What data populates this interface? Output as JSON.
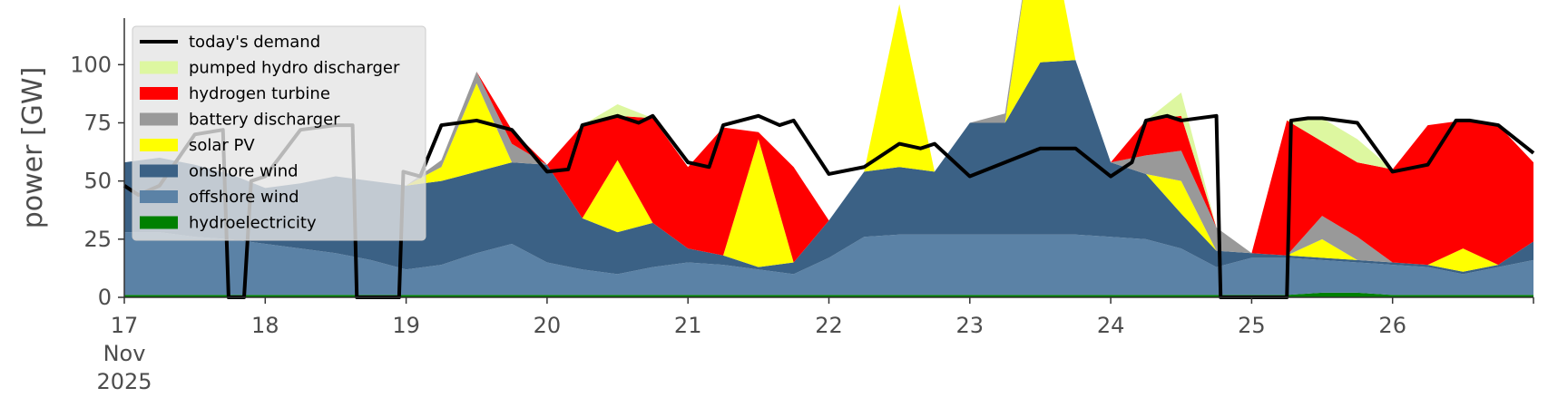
{
  "chart_data": {
    "type": "area",
    "title": "",
    "xlabel": "",
    "ylabel": "power [GW]",
    "xlim": [
      17,
      27
    ],
    "ylim": [
      0,
      120
    ],
    "yticks": [
      0,
      25,
      50,
      75,
      100
    ],
    "xticks": [
      {
        "value": 17,
        "lines": [
          "17",
          "Nov",
          "2025"
        ]
      },
      {
        "value": 18,
        "lines": [
          "18"
        ]
      },
      {
        "value": 19,
        "lines": [
          "19"
        ]
      },
      {
        "value": 20,
        "lines": [
          "20"
        ]
      },
      {
        "value": 21,
        "lines": [
          "21"
        ]
      },
      {
        "value": 22,
        "lines": [
          "22"
        ]
      },
      {
        "value": 23,
        "lines": [
          "23"
        ]
      },
      {
        "value": 24,
        "lines": [
          "24"
        ]
      },
      {
        "value": 25,
        "lines": [
          "25"
        ]
      },
      {
        "value": 26,
        "lines": [
          "26"
        ]
      },
      {
        "value": 27,
        "lines": [
          ""
        ]
      }
    ],
    "grid": false,
    "legend_position": "top-left",
    "x": [
      17.0,
      17.25,
      17.5,
      17.75,
      18.0,
      18.25,
      18.5,
      18.75,
      19.0,
      19.25,
      19.5,
      19.75,
      20.0,
      20.25,
      20.5,
      20.75,
      21.0,
      21.25,
      21.5,
      21.75,
      22.0,
      22.25,
      22.5,
      22.75,
      23.0,
      23.25,
      23.5,
      23.75,
      24.0,
      24.25,
      24.5,
      24.75,
      25.0,
      25.25,
      25.5,
      25.75,
      26.0,
      26.25,
      26.5,
      26.75,
      27.0
    ],
    "stack_order": [
      "hydroelectricity",
      "offshore wind",
      "onshore wind",
      "solar PV",
      "battery discharger",
      "hydrogen turbine",
      "pumped hydro discharger"
    ],
    "series": [
      {
        "name": "hydroelectricity",
        "color": "#008000",
        "values": [
          1,
          1,
          1,
          1,
          1,
          1,
          1,
          1,
          1,
          1,
          1,
          1,
          1,
          1,
          1,
          1,
          1,
          1,
          1,
          1,
          1,
          1,
          1,
          1,
          1,
          1,
          1,
          1,
          1,
          1,
          1,
          1,
          1,
          1,
          2,
          2,
          1,
          1,
          1,
          1,
          1
        ]
      },
      {
        "name": "offshore wind",
        "color": "#5b82a6",
        "values": [
          27,
          27,
          25,
          24,
          22,
          20,
          18,
          15,
          11,
          13,
          18,
          22,
          14,
          11,
          9,
          12,
          14,
          13,
          11,
          9,
          16,
          25,
          26,
          26,
          26,
          26,
          26,
          26,
          25,
          24,
          20,
          12,
          16,
          16,
          14,
          13,
          13,
          12,
          9,
          12,
          15
        ]
      },
      {
        "name": "onshore wind",
        "color": "#3b6185",
        "values": [
          30,
          32,
          31,
          28,
          24,
          28,
          33,
          34,
          36,
          36,
          35,
          35,
          42,
          22,
          18,
          19,
          6,
          4,
          1,
          5,
          16,
          28,
          29,
          27,
          48,
          48,
          74,
          75,
          32,
          28,
          15,
          7,
          2,
          1,
          1,
          1,
          1,
          1,
          1,
          1,
          8
        ]
      },
      {
        "name": "solar PV",
        "color": "#ffff00",
        "values": [
          0,
          0,
          0,
          0,
          0,
          0,
          0,
          0,
          0,
          6,
          38,
          0,
          0,
          0,
          31,
          0,
          0,
          0,
          55,
          0,
          0,
          0,
          70,
          0,
          0,
          0,
          80,
          0,
          0,
          0,
          14,
          0,
          0,
          0,
          8,
          0,
          0,
          0,
          10,
          0,
          0
        ]
      },
      {
        "name": "battery discharger",
        "color": "#999999",
        "values": [
          0,
          0,
          0,
          0,
          0,
          0,
          0,
          0,
          0,
          3,
          5,
          8,
          0,
          0,
          0,
          0,
          0,
          0,
          0,
          0,
          0,
          0,
          0,
          0,
          0,
          4,
          0,
          0,
          0,
          8,
          13,
          10,
          0,
          0,
          10,
          10,
          0,
          0,
          0,
          0,
          0
        ]
      },
      {
        "name": "hydrogen turbine",
        "color": "#ff0000",
        "values": [
          0,
          0,
          0,
          0,
          0,
          0,
          0,
          0,
          0,
          0,
          0,
          6,
          0,
          40,
          19,
          45,
          35,
          55,
          3,
          41,
          0,
          0,
          0,
          0,
          0,
          0,
          0,
          0,
          0,
          15,
          15,
          0,
          0,
          58,
          32,
          32,
          40,
          60,
          55,
          60,
          34
        ]
      },
      {
        "name": "pumped hydro discharger",
        "color": "#ddf7a0",
        "values": [
          0,
          0,
          0,
          0,
          0,
          0,
          0,
          0,
          0,
          0,
          0,
          0,
          0,
          0,
          5,
          0,
          0,
          0,
          0,
          0,
          0,
          0,
          0,
          0,
          0,
          0,
          0,
          0,
          0,
          0,
          10,
          0,
          0,
          0,
          10,
          10,
          0,
          0,
          0,
          0,
          0
        ]
      }
    ],
    "line": {
      "name": "today's demand",
      "color": "#000000",
      "x": [
        17.0,
        17.1,
        17.25,
        17.5,
        17.7,
        17.74,
        17.85,
        17.9,
        18.0,
        18.25,
        18.5,
        18.62,
        18.65,
        18.95,
        18.98,
        19.1,
        19.25,
        19.5,
        19.75,
        20.0,
        20.15,
        20.25,
        20.5,
        20.65,
        20.75,
        21.0,
        21.15,
        21.25,
        21.5,
        21.65,
        21.75,
        22.0,
        22.25,
        22.5,
        22.65,
        22.75,
        23.0,
        23.25,
        23.5,
        23.75,
        24.0,
        24.15,
        24.25,
        24.4,
        24.5,
        24.75,
        24.78,
        25.25,
        25.28,
        25.4,
        25.5,
        25.75,
        26.0,
        26.25,
        26.45,
        26.55,
        26.75,
        27.0
      ],
      "values": [
        48,
        44,
        48,
        70,
        72,
        0,
        0,
        50,
        52,
        72,
        74,
        74,
        0,
        0,
        54,
        52,
        74,
        76,
        72,
        54,
        55,
        74,
        78,
        75,
        78,
        58,
        56,
        74,
        78,
        74,
        76,
        53,
        56,
        66,
        64,
        66,
        52,
        58,
        64,
        64,
        52,
        58,
        76,
        78,
        76,
        78,
        0,
        0,
        76,
        77,
        77,
        75,
        54,
        57,
        76,
        76,
        74,
        62
      ]
    }
  },
  "legend": [
    {
      "label": "today's demand",
      "kind": "line",
      "color": "#000000"
    },
    {
      "label": "pumped hydro discharger",
      "kind": "patch",
      "color": "#ddf7a0"
    },
    {
      "label": "hydrogen turbine",
      "kind": "patch",
      "color": "#ff0000"
    },
    {
      "label": "battery discharger",
      "kind": "patch",
      "color": "#999999"
    },
    {
      "label": "solar PV",
      "kind": "patch",
      "color": "#ffff00"
    },
    {
      "label": "onshore wind",
      "kind": "patch",
      "color": "#3b6185"
    },
    {
      "label": "offshore wind",
      "kind": "patch",
      "color": "#5b82a6"
    },
    {
      "label": "hydroelectricity",
      "kind": "patch",
      "color": "#008000"
    }
  ]
}
